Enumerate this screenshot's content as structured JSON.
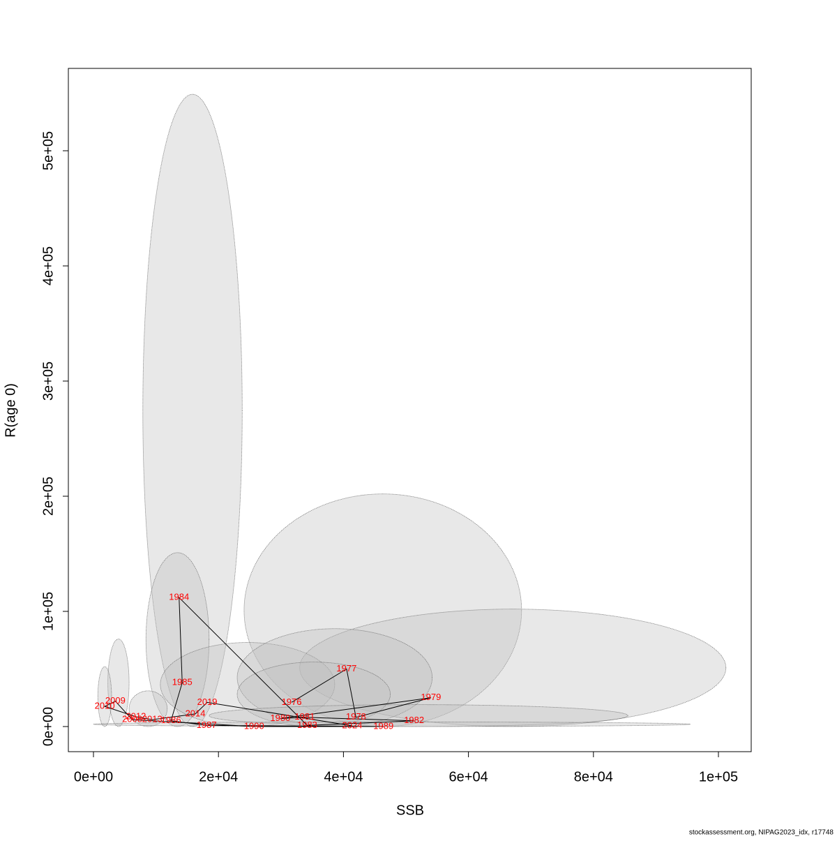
{
  "chart_data": {
    "type": "scatter",
    "x_label": "SSB",
    "y_label": "R(age 0)",
    "footer": "stockassessment.org, NIPAG2023_idx, r17748",
    "xlim": [
      -4018,
      105245
    ],
    "ylim": [
      -21818,
      571515
    ],
    "xticks": [
      {
        "value": 0,
        "label": "0e+00"
      },
      {
        "value": 20000,
        "label": "2e+04"
      },
      {
        "value": 40000,
        "label": "4e+04"
      },
      {
        "value": 60000,
        "label": "6e+04"
      },
      {
        "value": 80000,
        "label": "8e+04"
      },
      {
        "value": 100000,
        "label": "1e+05"
      }
    ],
    "yticks": [
      {
        "value": 0,
        "label": "0e+00"
      },
      {
        "value": 100000,
        "label": "1e+05"
      },
      {
        "value": 200000,
        "label": "2e+05"
      },
      {
        "value": 300000,
        "label": "3e+05"
      },
      {
        "value": 400000,
        "label": "4e+05"
      },
      {
        "value": 500000,
        "label": "5e+05"
      }
    ],
    "point_color": "#ff0000",
    "line_color": "#000000",
    "region_color": "#bdbdbd",
    "labels": [
      "1976",
      "1977",
      "1978",
      "1979",
      "1980",
      "1981",
      "1982",
      "1983",
      "1984",
      "1985",
      "1986",
      "1987",
      "1989",
      "1990",
      "2008",
      "2009",
      "2010",
      "2012",
      "2013",
      "2014",
      "2019",
      "2024"
    ],
    "x": [
      31700,
      40500,
      42000,
      54000,
      29900,
      33800,
      51300,
      34200,
      13700,
      14200,
      12400,
      18100,
      46400,
      25700,
      6200,
      3500,
      1800,
      6800,
      9400,
      16300,
      18200,
      41400
    ],
    "y": [
      21000,
      50000,
      8000,
      25000,
      7000,
      8000,
      5000,
      1000,
      112000,
      38000,
      5000,
      1000,
      0,
      0,
      6000,
      22000,
      17500,
      8500,
      6000,
      11000,
      21000,
      600
    ],
    "regions": [
      {
        "x": [
          7900,
          23800
        ],
        "y": [
          0,
          549000
        ]
      },
      {
        "x": [
          8400,
          18500
        ],
        "y": [
          0,
          151000
        ]
      },
      {
        "x": [
          24100,
          68500
        ],
        "y": [
          0,
          202000
        ]
      },
      {
        "x": [
          33000,
          101200
        ],
        "y": [
          0,
          102000
        ]
      },
      {
        "x": [
          10700,
          38600
        ],
        "y": [
          0,
          73000
        ]
      },
      {
        "x": [
          23000,
          54200
        ],
        "y": [
          0,
          85000
        ]
      },
      {
        "x": [
          23000,
          47500
        ],
        "y": [
          0,
          56000
        ]
      },
      {
        "x": [
          2300,
          5700
        ],
        "y": [
          0,
          76000
        ]
      },
      {
        "x": [
          700,
          2900
        ],
        "y": [
          0,
          52000
        ]
      },
      {
        "x": [
          5700,
          11800
        ],
        "y": [
          0,
          31000
        ]
      },
      {
        "x": [
          18500,
          85500
        ],
        "y": [
          0,
          19000
        ]
      },
      {
        "x": [
          0,
          95500
        ],
        "y": [
          0,
          4000
        ]
      }
    ]
  }
}
